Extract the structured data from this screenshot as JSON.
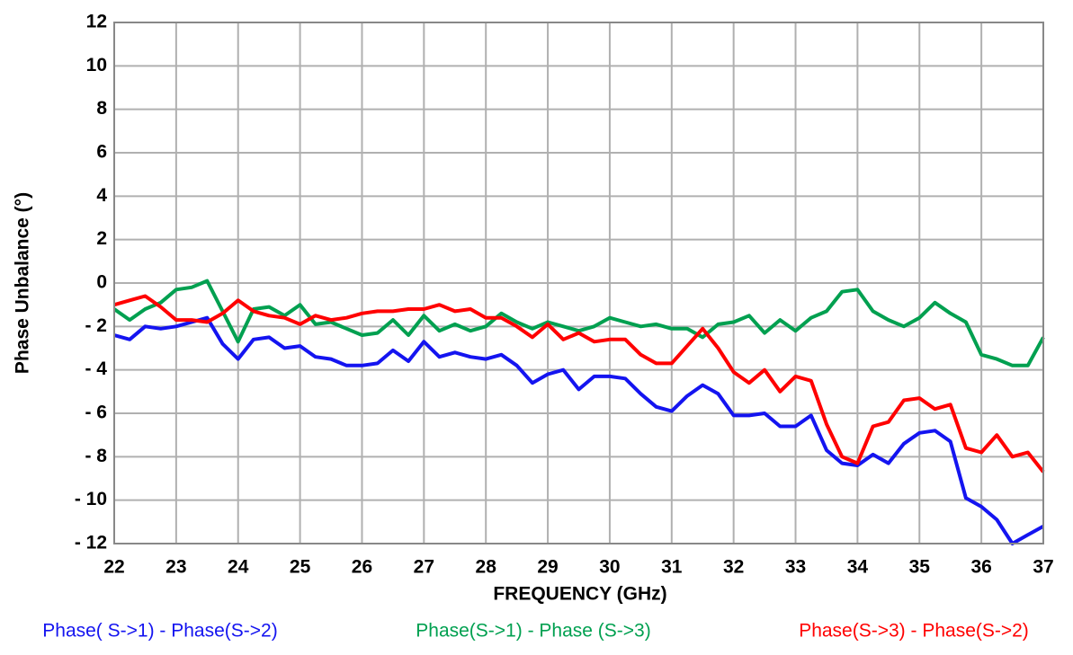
{
  "chart_data": {
    "type": "line",
    "x_label": "FREQUENCY (GHz)",
    "y_label": "Phase Unbalance (°)",
    "x": [
      22,
      22.25,
      22.5,
      22.75,
      23,
      23.25,
      23.5,
      23.75,
      24,
      24.25,
      24.5,
      24.75,
      25,
      25.25,
      25.5,
      25.75,
      26,
      26.25,
      26.5,
      26.75,
      27,
      27.25,
      27.5,
      27.75,
      28,
      28.25,
      28.5,
      28.75,
      29,
      29.25,
      29.5,
      29.75,
      30,
      30.25,
      30.5,
      30.75,
      31,
      31.25,
      31.5,
      31.75,
      32,
      32.25,
      32.5,
      32.75,
      33,
      33.25,
      33.5,
      33.75,
      34,
      34.25,
      34.5,
      34.75,
      35,
      35.25,
      35.5,
      35.75,
      36,
      36.25,
      36.5,
      36.75,
      37
    ],
    "series": [
      {
        "name": "Phase( S->1) - Phase(S->2)",
        "color": "#1414f0",
        "values": [
          -2.4,
          -2.6,
          -2.0,
          -2.1,
          -2.0,
          -1.8,
          -1.6,
          -2.8,
          -3.5,
          -2.6,
          -2.5,
          -3.0,
          -2.9,
          -3.4,
          -3.5,
          -3.8,
          -3.8,
          -3.7,
          -3.1,
          -3.6,
          -2.7,
          -3.4,
          -3.2,
          -3.4,
          -3.5,
          -3.3,
          -3.8,
          -4.6,
          -4.2,
          -4.0,
          -4.9,
          -4.3,
          -4.3,
          -4.4,
          -5.1,
          -5.7,
          -5.9,
          -5.2,
          -4.7,
          -5.1,
          -6.1,
          -6.1,
          -6.0,
          -6.6,
          -6.6,
          -6.1,
          -7.7,
          -8.3,
          -8.4,
          -7.9,
          -8.3,
          -7.4,
          -6.9,
          -6.8,
          -7.3,
          -9.9,
          -10.3,
          -10.9,
          -12.0,
          -11.6,
          -11.2
        ]
      },
      {
        "name": "Phase(S->1) - Phase (S->3)",
        "color": "#00a050",
        "values": [
          -1.2,
          -1.7,
          -1.2,
          -0.9,
          -0.3,
          -0.2,
          0.1,
          -1.3,
          -2.7,
          -1.2,
          -1.1,
          -1.5,
          -1.0,
          -1.9,
          -1.8,
          -2.1,
          -2.4,
          -2.3,
          -1.7,
          -2.4,
          -1.5,
          -2.2,
          -1.9,
          -2.2,
          -2.0,
          -1.4,
          -1.8,
          -2.1,
          -1.8,
          -2.0,
          -2.2,
          -2.0,
          -1.6,
          -1.8,
          -2.0,
          -1.9,
          -2.1,
          -2.1,
          -2.5,
          -1.9,
          -1.8,
          -1.5,
          -2.3,
          -1.7,
          -2.2,
          -1.6,
          -1.3,
          -0.4,
          -0.3,
          -1.3,
          -1.7,
          -2.0,
          -1.6,
          -0.9,
          -1.4,
          -1.8,
          -3.3,
          -3.5,
          -3.8,
          -3.8,
          -2.5
        ]
      },
      {
        "name": "Phase(S->3) - Phase(S->2)",
        "color": "#ff0000",
        "values": [
          -1.0,
          -0.8,
          -0.6,
          -1.1,
          -1.7,
          -1.7,
          -1.8,
          -1.4,
          -0.8,
          -1.3,
          -1.5,
          -1.6,
          -1.9,
          -1.5,
          -1.7,
          -1.6,
          -1.4,
          -1.3,
          -1.3,
          -1.2,
          -1.2,
          -1.0,
          -1.3,
          -1.2,
          -1.6,
          -1.6,
          -2.0,
          -2.5,
          -1.9,
          -2.6,
          -2.3,
          -2.7,
          -2.6,
          -2.6,
          -3.3,
          -3.7,
          -3.7,
          -2.9,
          -2.1,
          -3.0,
          -4.1,
          -4.6,
          -4.0,
          -5.0,
          -4.3,
          -4.5,
          -6.5,
          -8.0,
          -8.3,
          -6.6,
          -6.4,
          -5.4,
          -5.3,
          -5.8,
          -5.6,
          -7.6,
          -7.8,
          -7.0,
          -8.0,
          -7.8,
          -8.7
        ]
      }
    ],
    "xlim": [
      22,
      37
    ],
    "xticks": [
      22,
      23,
      24,
      25,
      26,
      27,
      28,
      29,
      30,
      31,
      32,
      33,
      34,
      35,
      36,
      37
    ],
    "ylim": [
      -12,
      12
    ],
    "yticks": [
      {
        "value": -12,
        "label": "- 12"
      },
      {
        "value": -10,
        "label": "- 10"
      },
      {
        "value": -8,
        "label": "- 8"
      },
      {
        "value": -6,
        "label": "- 6"
      },
      {
        "value": -4,
        "label": "- 4"
      },
      {
        "value": -2,
        "label": "- 2"
      },
      0,
      2,
      4,
      6,
      8,
      10,
      12
    ],
    "grid": true
  }
}
